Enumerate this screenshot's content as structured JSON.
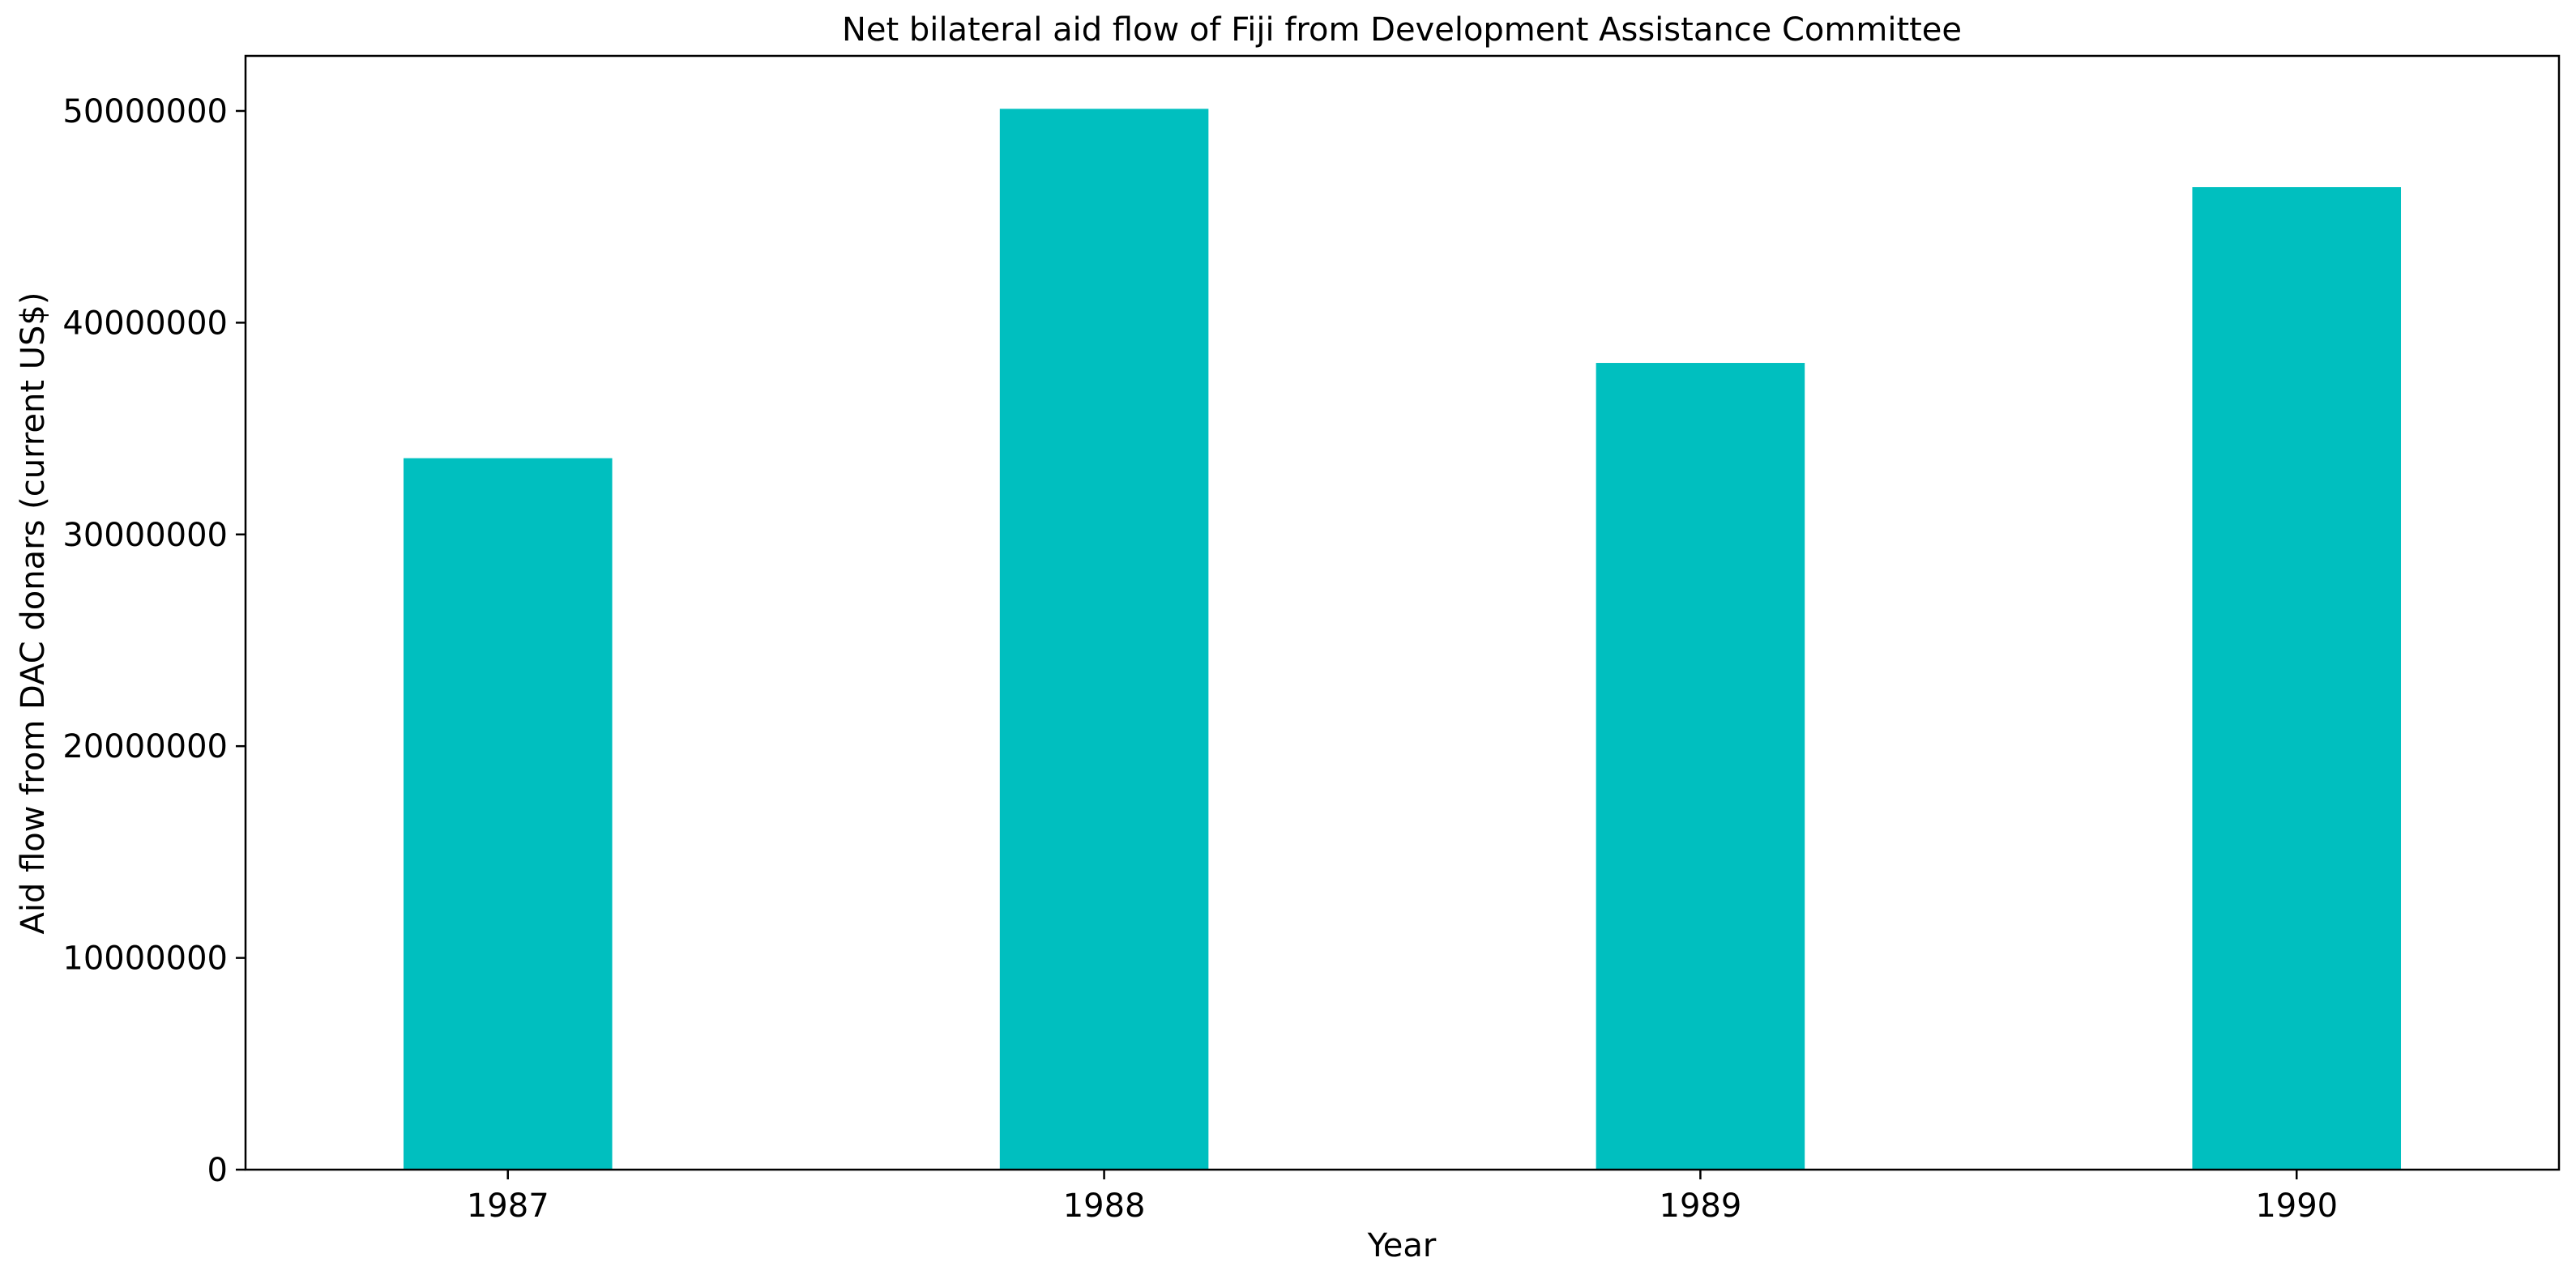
{
  "chart_data": {
    "type": "bar",
    "title": "Net bilateral aid flow of Fiji from Development Assistance Committee",
    "xlabel": "Year",
    "ylabel": "Aid flow from DAC donars (current US$)",
    "categories": [
      "1987",
      "1988",
      "1989",
      "1990"
    ],
    "values": [
      33600000,
      50100000,
      38100000,
      46400000
    ],
    "ylim": [
      0,
      52600000
    ],
    "yticks": [
      0,
      10000000,
      20000000,
      30000000,
      40000000,
      50000000
    ],
    "ytick_labels": [
      "0",
      "10000000",
      "20000000",
      "30000000",
      "40000000",
      "50000000"
    ],
    "bar_color": "#00bfbf",
    "grid": false,
    "legend": "none"
  }
}
